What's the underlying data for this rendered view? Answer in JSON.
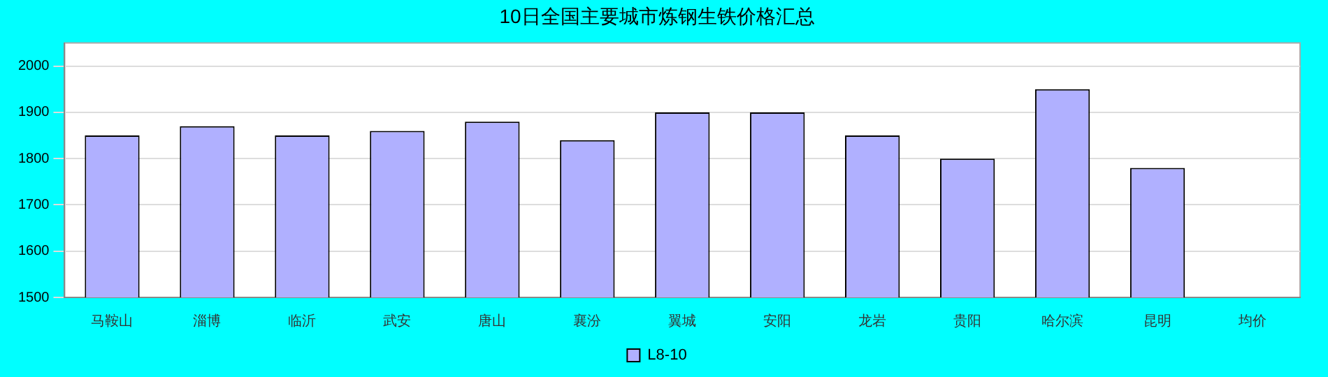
{
  "chart_data": {
    "type": "bar",
    "title": "10日全国主要城市炼钢生铁价格汇总",
    "categories": [
      "马鞍山",
      "淄博",
      "临沂",
      "武安",
      "唐山",
      "襄汾",
      "翼城",
      "安阳",
      "龙岩",
      "贵阳",
      "哈尔滨",
      "昆明",
      "均价"
    ],
    "series": [
      {
        "name": "L8-10",
        "color": "#b0b0ff",
        "values": [
          1850,
          1870,
          1850,
          1860,
          1880,
          1840,
          1900,
          1900,
          1850,
          1800,
          1950,
          1780,
          null
        ]
      }
    ],
    "ylim": [
      1500,
      2050
    ],
    "yticks": [
      1500,
      1600,
      1700,
      1800,
      1900,
      2000
    ],
    "grid": "y",
    "legend": "bottom"
  }
}
